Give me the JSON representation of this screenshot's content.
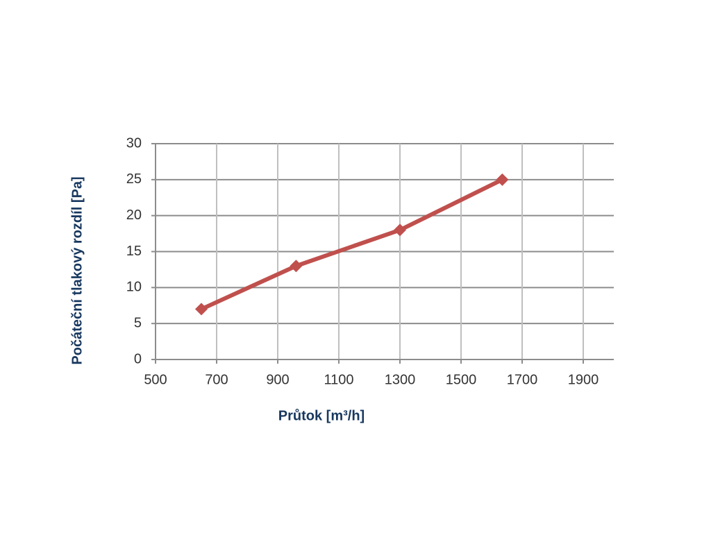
{
  "chart_data": {
    "type": "line",
    "x_label": "Průtok [m³/h]",
    "y_label": "Počáteční tlakový rozdíl [Pa]",
    "x": [
      650,
      960,
      1300,
      1635
    ],
    "series": [
      {
        "color": "#c0504d",
        "values": [
          7,
          13,
          18,
          25
        ]
      }
    ],
    "xlim": [
      500,
      2000
    ],
    "xticks": [
      500,
      700,
      900,
      1100,
      1300,
      1500,
      1700,
      1900
    ],
    "ylim": [
      0,
      30
    ],
    "yticks": [
      0,
      5,
      10,
      15,
      20,
      25,
      30
    ],
    "grid": true
  }
}
